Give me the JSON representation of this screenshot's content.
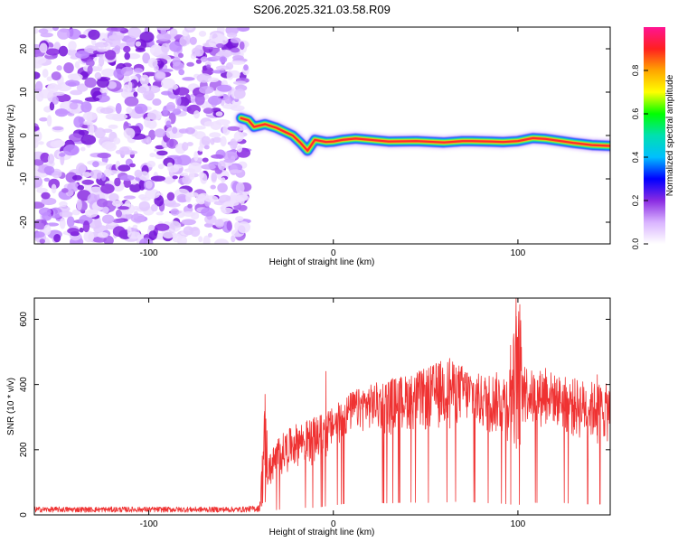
{
  "figure": {
    "title": "S206.2025.321.03.58.R09"
  },
  "chart_data": [
    {
      "type": "heatmap",
      "title": "S206.2025.321.03.58.R09",
      "xlabel": "Height of straight line (km)",
      "ylabel": "Frequency (Hz)",
      "xlim": [
        -162,
        150
      ],
      "ylim": [
        -25,
        25
      ],
      "x_ticks": [
        "-100",
        "0",
        "100"
      ],
      "y_ticks": [
        "-20",
        "-10",
        "0",
        "10",
        "20"
      ],
      "noise_region_x": [
        -162,
        -51
      ],
      "onset_x": -50,
      "frequency_trace": [
        {
          "x": -50,
          "y": 4.0
        },
        {
          "x": -46,
          "y": 3.5
        },
        {
          "x": -43,
          "y": 2.0
        },
        {
          "x": -37,
          "y": 2.6
        },
        {
          "x": -31,
          "y": 1.8
        },
        {
          "x": -26,
          "y": 0.8
        },
        {
          "x": -22,
          "y": 0.0
        },
        {
          "x": -18,
          "y": -1.6
        },
        {
          "x": -14,
          "y": -3.5
        },
        {
          "x": -10,
          "y": -1.0
        },
        {
          "x": -4,
          "y": -1.5
        },
        {
          "x": 0,
          "y": -1.4
        },
        {
          "x": 5,
          "y": -1.0
        },
        {
          "x": 12,
          "y": -0.7
        },
        {
          "x": 20,
          "y": -1.0
        },
        {
          "x": 30,
          "y": -1.4
        },
        {
          "x": 45,
          "y": -1.3
        },
        {
          "x": 60,
          "y": -1.6
        },
        {
          "x": 70,
          "y": -1.3
        },
        {
          "x": 75,
          "y": -1.3
        },
        {
          "x": 85,
          "y": -1.4
        },
        {
          "x": 92,
          "y": -1.5
        },
        {
          "x": 96,
          "y": -1.4
        },
        {
          "x": 100,
          "y": -1.3
        },
        {
          "x": 108,
          "y": -0.6
        },
        {
          "x": 115,
          "y": -0.8
        },
        {
          "x": 122,
          "y": -1.2
        },
        {
          "x": 130,
          "y": -1.7
        },
        {
          "x": 140,
          "y": -2.2
        },
        {
          "x": 150,
          "y": -2.4
        }
      ],
      "colorbar": {
        "label": "Normalized spectral amplitude",
        "range": [
          0,
          1
        ],
        "ticks": [
          "0.0",
          "0.2",
          "0.4",
          "0.6",
          "0.8"
        ],
        "colors": [
          "#ffffff",
          "#d9b3ff",
          "#8a2be2",
          "#0000ff",
          "#00bfff",
          "#00e0b0",
          "#00ff00",
          "#ffff00",
          "#ffa500",
          "#ff2020",
          "#ff1493"
        ]
      }
    },
    {
      "type": "line",
      "title": "",
      "xlabel": "Height of straight line (km)",
      "ylabel": "SNR (10 * v/v)",
      "xlim": [
        -162,
        150
      ],
      "ylim": [
        0,
        665
      ],
      "x_ticks": [
        "-100",
        "0",
        "100"
      ],
      "y_ticks": [
        "0",
        "200",
        "400",
        "600"
      ],
      "series": [
        {
          "name": "SNR",
          "color": "#ef3232",
          "envelope_x": [
            -162,
            -50,
            -40,
            -37,
            -35,
            -30,
            -20,
            -10,
            0,
            10,
            20,
            30,
            40,
            50,
            60,
            70,
            80,
            90,
            95,
            100,
            105,
            110,
            115,
            120,
            130,
            140,
            150
          ],
          "envelope_lo": [
            8,
            8,
            10,
            40,
            80,
            110,
            150,
            150,
            200,
            250,
            260,
            240,
            260,
            250,
            260,
            280,
            250,
            240,
            220,
            200,
            280,
            250,
            280,
            270,
            230,
            220,
            220
          ],
          "envelope_hi": [
            25,
            25,
            30,
            370,
            180,
            240,
            280,
            300,
            330,
            380,
            400,
            420,
            430,
            450,
            480,
            460,
            430,
            440,
            440,
            665,
            450,
            440,
            455,
            430,
            420,
            410,
            400
          ],
          "spikes": [
            {
              "x": -37,
              "y": 370
            },
            {
              "x": -4,
              "y": 440
            },
            {
              "x": 63,
              "y": 480
            },
            {
              "x": 96,
              "y": 520
            },
            {
              "x": 99,
              "y": 665
            },
            {
              "x": 101,
              "y": 645
            },
            {
              "x": 115,
              "y": 450
            },
            {
              "x": 143,
              "y": 430
            }
          ]
        }
      ]
    }
  ]
}
